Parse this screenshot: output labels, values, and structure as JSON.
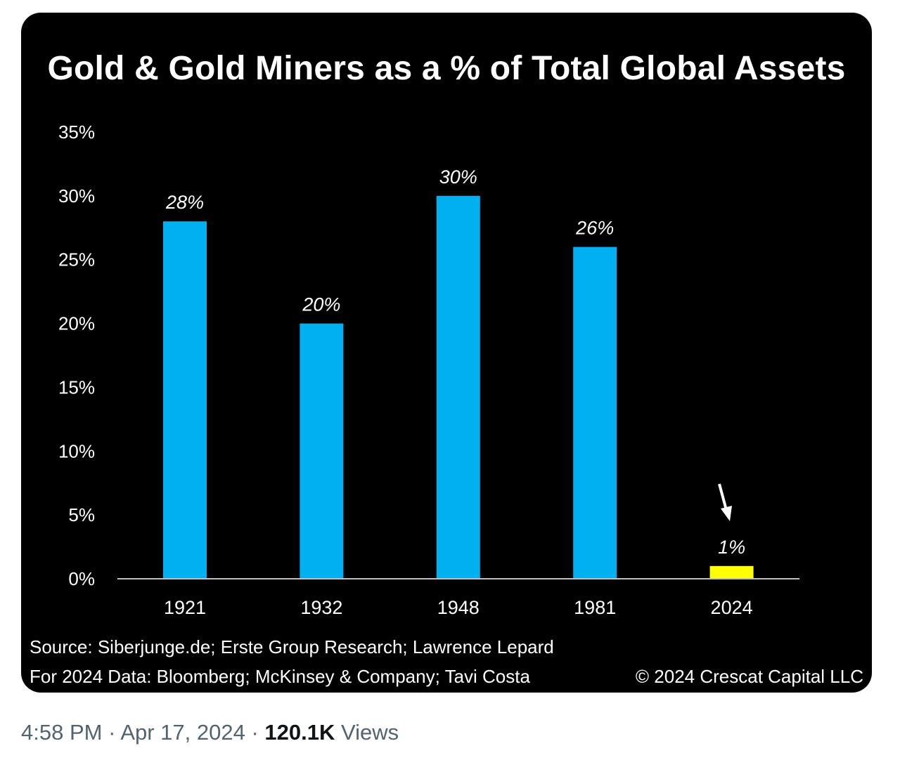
{
  "chart_data": {
    "type": "bar",
    "title": "Gold & Gold Miners as a % of Total Global Assets",
    "categories": [
      "1921",
      "1932",
      "1948",
      "1981",
      "2024"
    ],
    "values": [
      28,
      20,
      30,
      26,
      1
    ],
    "data_labels": [
      "28%",
      "20%",
      "30%",
      "26%",
      "1%"
    ],
    "y_ticks": [
      "0%",
      "5%",
      "10%",
      "15%",
      "20%",
      "25%",
      "30%",
      "35%"
    ],
    "ylim": [
      0,
      35
    ],
    "xlabel": "",
    "ylabel": "",
    "grid": false,
    "colors": {
      "default_bar": "#00b0f0",
      "highlight_bar": "#ffff00",
      "background": "#000000",
      "text": "#ffffff"
    },
    "highlight_category": "2024",
    "annotation": "down-arrow-icon pointing at 2024 bar"
  },
  "source": {
    "line1": "Source: Siberjunge.de; Erste Group Research; Lawrence Lepard",
    "line2": "For 2024 Data: Bloomberg; McKinsey & Company; Tavi Costa",
    "copyright": "© 2024 Crescat Capital LLC"
  },
  "tweet": {
    "time": "4:58 PM",
    "separator": "·",
    "date": "Apr 17, 2024",
    "views_count": "120.1K",
    "views_label": "Views"
  }
}
